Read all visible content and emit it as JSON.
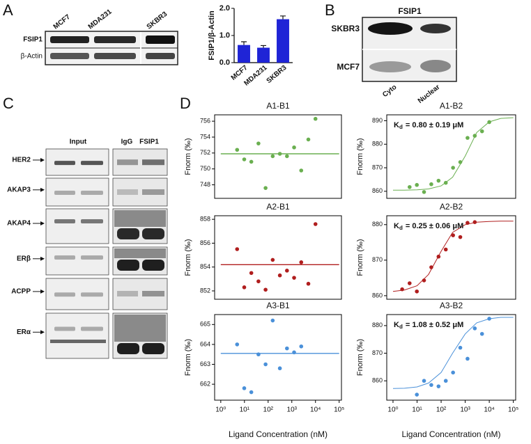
{
  "panel_labels": [
    "A",
    "B",
    "C",
    "D"
  ],
  "blots": {
    "a": {
      "lanes": [
        "MCF7",
        "MDA231",
        "SKBR3"
      ],
      "rows": [
        "FSIP1",
        "β-Actin"
      ]
    },
    "b": {
      "title": "FSIP1",
      "rows": [
        "SKBR3",
        "MCF7"
      ],
      "lanes": [
        "Cyto",
        "Nuclear"
      ]
    },
    "c": {
      "headers": [
        "Input",
        "IgG",
        "FSIP1"
      ],
      "rows": [
        "HER2",
        "AKAP3",
        "AKAP4",
        "ERβ",
        "ACPP",
        "ERα"
      ]
    }
  },
  "chart_data": [
    {
      "type": "bar",
      "ylabel": "FSIP1/β-Actin",
      "categories": [
        "MCF7",
        "MDA231",
        "SKBR3"
      ],
      "values": [
        0.65,
        0.55,
        1.6
      ],
      "errors": [
        0.12,
        0.08,
        0.12
      ],
      "color": "#1f24d6",
      "ylim": [
        0,
        2
      ],
      "yticks": [
        {
          "value": 0,
          "label": "0.0"
        },
        {
          "value": 1,
          "label": "1.0"
        },
        {
          "value": 2,
          "label": "2.0"
        }
      ]
    },
    {
      "type": "scatter",
      "title": "A1-B1",
      "ylabel": "Fnorm (‰)",
      "log_x": true,
      "xlim": [
        0.55,
        125000
      ],
      "ylim": [
        746.3,
        756.8
      ],
      "yticks": [
        748,
        750,
        752,
        754,
        756
      ],
      "series": [
        {
          "color": "#6aaf50",
          "x": [
            4.9,
            9.8,
            19.5,
            39,
            78,
            156,
            313,
            625,
            1250,
            2500,
            5000,
            10000
          ],
          "values": [
            752.4,
            751.2,
            750.9,
            753.2,
            747.6,
            751.6,
            751.9,
            751.6,
            752.7,
            749.8,
            753.7,
            756.3
          ]
        }
      ],
      "fit": {
        "x": [
          1,
          100000
        ],
        "values": [
          751.9,
          751.9
        ]
      }
    },
    {
      "type": "scatter",
      "title": "A1-B2",
      "ylabel": "Fnorm (‰)",
      "log_x": true,
      "xlim": [
        0.55,
        125000
      ],
      "ylim": [
        857,
        892.5
      ],
      "yticks": [
        860,
        870,
        880,
        890
      ],
      "annotation": {
        "symbol": "K",
        "sub": "d",
        "text": "= 0.80 ± 0.19 μM"
      },
      "series": [
        {
          "color": "#6aaf50",
          "x": [
            4.9,
            9.8,
            19.5,
            39,
            78,
            156,
            313,
            625,
            1250,
            2500,
            5000,
            10000
          ],
          "values": [
            861.8,
            862.7,
            859.7,
            863,
            864.5,
            863.6,
            870,
            872.4,
            882.7,
            883.6,
            885.5,
            889.4
          ]
        }
      ],
      "fit": {
        "x": [
          1,
          3,
          10,
          30,
          100,
          300,
          1000,
          3000,
          10000,
          30000,
          100000
        ],
        "values": [
          860.5,
          860.5,
          860.6,
          861,
          862.3,
          866,
          875,
          885,
          889.5,
          891,
          891.3
        ]
      }
    },
    {
      "type": "scatter",
      "title": "A2-B1",
      "ylabel": "Fnorm (‰)",
      "log_x": true,
      "xlim": [
        0.55,
        125000
      ],
      "ylim": [
        851.3,
        858.3
      ],
      "yticks": [
        852,
        854,
        856,
        858
      ],
      "series": [
        {
          "color": "#b01e1e",
          "x": [
            4.9,
            9.8,
            19.5,
            39,
            78,
            156,
            313,
            625,
            1250,
            2500,
            5000,
            10000
          ],
          "values": [
            855.5,
            852.3,
            853.5,
            852.8,
            852.1,
            854.6,
            853.3,
            853.7,
            853.1,
            854.4,
            852.6,
            857.6
          ]
        }
      ],
      "fit": {
        "x": [
          1,
          100000
        ],
        "values": [
          854.2,
          854.2
        ]
      }
    },
    {
      "type": "scatter",
      "title": "A2-B2",
      "ylabel": "Fnorm (‰)",
      "log_x": true,
      "xlim": [
        0.55,
        125000
      ],
      "ylim": [
        859,
        882.5
      ],
      "yticks": [
        860,
        870,
        880
      ],
      "annotation": {
        "symbol": "K",
        "sub": "d",
        "text": "= 0.25 ± 0.06 μM"
      },
      "series": [
        {
          "color": "#b01e1e",
          "x": [
            2.4,
            4.9,
            9.8,
            19.5,
            39,
            78,
            156,
            313,
            625,
            1250,
            2500
          ],
          "values": [
            861.8,
            863.5,
            861.2,
            864.3,
            868,
            871,
            873,
            877,
            876.5,
            880.5,
            880.7
          ]
        }
      ],
      "fit": {
        "x": [
          1,
          3,
          10,
          30,
          100,
          300,
          1000,
          3000,
          10000,
          30000,
          100000
        ],
        "values": [
          861.2,
          861.6,
          862.8,
          866,
          872.5,
          877.8,
          880,
          880.7,
          880.9,
          881,
          881
        ]
      }
    },
    {
      "type": "scatter",
      "title": "A3-B1",
      "ylabel": "Fnorm (‰)",
      "xlabel": "Ligand Concentration (nM)",
      "log_x": true,
      "xlim": [
        0.55,
        125000
      ],
      "ylim": [
        661.2,
        665.5
      ],
      "yticks": [
        662,
        663,
        664,
        665
      ],
      "xticks": [
        {
          "value": 1,
          "label": "10⁰"
        },
        {
          "value": 10,
          "label": "10¹"
        },
        {
          "value": 100,
          "label": "10²"
        },
        {
          "value": 1000,
          "label": "10³"
        },
        {
          "value": 10000,
          "label": "10⁴"
        },
        {
          "value": 100000,
          "label": "10⁵"
        }
      ],
      "series": [
        {
          "color": "#4a90d9",
          "x": [
            4.9,
            9.8,
            19.5,
            39,
            78,
            156,
            313,
            625,
            1250,
            2500
          ],
          "values": [
            664.0,
            661.8,
            661.6,
            663.5,
            663.0,
            665.2,
            662.8,
            663.8,
            663.6,
            663.9
          ]
        }
      ],
      "fit": {
        "x": [
          1,
          100000
        ],
        "values": [
          663.55,
          663.55
        ]
      }
    },
    {
      "type": "scatter",
      "title": "A3-B2",
      "ylabel": "Fnorm (‰)",
      "xlabel": "Ligand Concentration (nM)",
      "log_x": true,
      "xlim": [
        0.55,
        125000
      ],
      "ylim": [
        853,
        884
      ],
      "yticks": [
        860,
        870,
        880
      ],
      "xticks": [
        {
          "value": 1,
          "label": "10⁰"
        },
        {
          "value": 10,
          "label": "10¹"
        },
        {
          "value": 100,
          "label": "10²"
        },
        {
          "value": 1000,
          "label": "10³"
        },
        {
          "value": 10000,
          "label": "10⁴"
        },
        {
          "value": 100000,
          "label": "10⁵"
        }
      ],
      "annotation": {
        "symbol": "K",
        "sub": "d",
        "text": "= 1.08 ± 0.52 μM"
      },
      "series": [
        {
          "color": "#4a90d9",
          "x": [
            9.8,
            19.5,
            39,
            78,
            156,
            313,
            625,
            1250,
            2500,
            5000,
            10000
          ],
          "values": [
            855,
            860,
            858.5,
            858,
            860,
            863,
            872,
            868,
            879,
            877,
            882.5
          ]
        }
      ],
      "fit": {
        "x": [
          1,
          3,
          10,
          30,
          100,
          300,
          1000,
          3000,
          10000,
          30000,
          100000
        ],
        "values": [
          857.2,
          857.3,
          857.8,
          859.2,
          863,
          870,
          877,
          881,
          882.5,
          883,
          883
        ]
      }
    }
  ]
}
